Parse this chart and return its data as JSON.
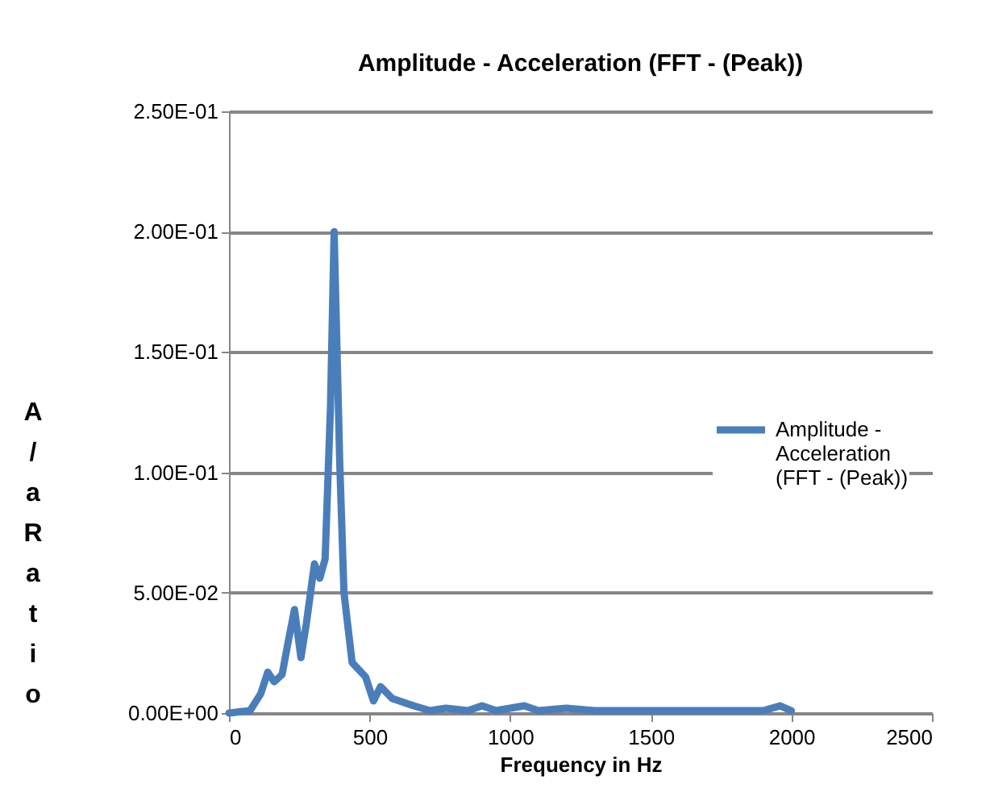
{
  "chart_data": {
    "type": "line",
    "title": "Amplitude - Acceleration (FFT - (Peak))",
    "xlabel": "Frequency in Hz",
    "ylabel": "A/a Ratio",
    "x": [
      0,
      75,
      113,
      138,
      161,
      189,
      208,
      233,
      256,
      275,
      304,
      323,
      342,
      361,
      374,
      394,
      409,
      438,
      486,
      514,
      539,
      581,
      657,
      715,
      772,
      850,
      900,
      950,
      1000,
      1050,
      1100,
      1200,
      1300,
      1400,
      1500,
      1650,
      1800,
      1900,
      1960,
      2000
    ],
    "series": [
      {
        "name": "Amplitude - Acceleration (FFT - (Peak))",
        "color": "#4a7ebb",
        "values": [
          0,
          0.001,
          0.008,
          0.017,
          0.013,
          0.016,
          0.028,
          0.043,
          0.023,
          0.037,
          0.062,
          0.056,
          0.064,
          0.127,
          0.2,
          0.104,
          0.05,
          0.021,
          0.015,
          0.005,
          0.011,
          0.006,
          0.003,
          0.001,
          0.002,
          0.001,
          0.003,
          0.001,
          0.002,
          0.003,
          0.001,
          0.002,
          0.001,
          0.001,
          0.001,
          0.001,
          0.001,
          0.001,
          0.003,
          0.001
        ]
      }
    ],
    "xlim": [
      0,
      2500
    ],
    "xticks": [
      0,
      500,
      1000,
      1500,
      2000,
      2500
    ],
    "ylim": [
      0,
      0.25
    ],
    "yticks": [
      {
        "value": 0,
        "label": "0.00E+00"
      },
      {
        "value": 0.05,
        "label": "5.00E-02"
      },
      {
        "value": 0.1,
        "label": "1.00E-01"
      },
      {
        "value": 0.15,
        "label": "1.50E-01"
      },
      {
        "value": 0.2,
        "label": "2.00E-01"
      },
      {
        "value": 0.25,
        "label": "2.50E-01"
      }
    ],
    "grid": "y",
    "legend": "right",
    "line_style": "solid"
  }
}
